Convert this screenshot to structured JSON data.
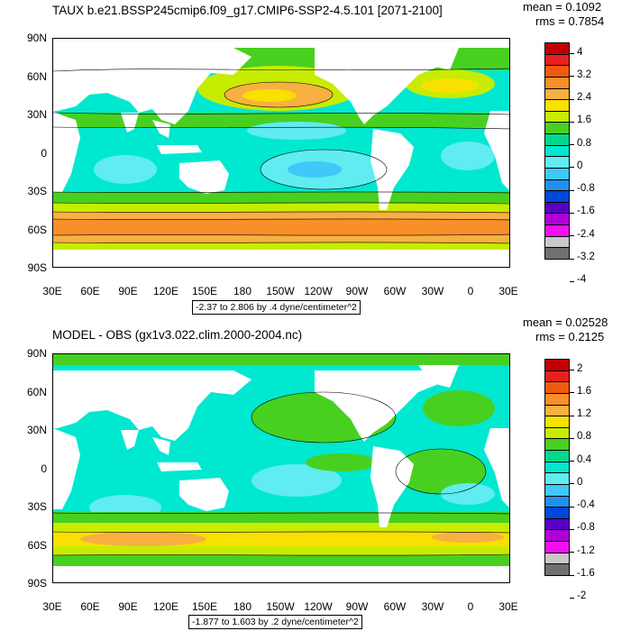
{
  "top": {
    "title": "TAUX b.e21.BSSP245cmip6.f09_g17.CMIP6-SSP2-4.5.101 [2071-2100]",
    "mean": "mean = 0.1092",
    "rms": "rms = 0.7854",
    "range": "-2.37 to 2.806 by .4 dyne/centimeter^2",
    "colorbar_labels": [
      "4",
      "3.2",
      "2.4",
      "1.6",
      "0.8",
      "0",
      "-0.8",
      "-1.6",
      "-2.4",
      "-3.2",
      "-4"
    ],
    "colors": [
      "#c00000",
      "#e82020",
      "#f05a10",
      "#f88f28",
      "#f8b040",
      "#f8e000",
      "#c8ec00",
      "#48d020",
      "#00d88c",
      "#00e8d0",
      "#60ecf0",
      "#40c8f8",
      "#2090f0",
      "#0048d8",
      "#5800c8",
      "#b000d8",
      "#f010f0",
      "#c8c8c8",
      "#707070"
    ]
  },
  "bottom": {
    "title": "MODEL - OBS (gx1v3.022.clim.2000-2004.nc)",
    "mean": "mean = 0.02528",
    "rms": "rms = 0.2125",
    "range": "-1.877 to 1.603 by .2 dyne/centimeter^2",
    "colorbar_labels": [
      "2",
      "1.6",
      "1.2",
      "0.8",
      "0.4",
      "0",
      "-0.4",
      "-0.8",
      "-1.2",
      "-1.6",
      "-2"
    ],
    "colors": [
      "#c00000",
      "#e82020",
      "#f05a10",
      "#f88f28",
      "#f8b040",
      "#f8e000",
      "#c8ec00",
      "#48d020",
      "#00d88c",
      "#00e8d0",
      "#60ecf0",
      "#40c8f8",
      "#2090f0",
      "#0048d8",
      "#5800c8",
      "#b000d8",
      "#f010f0",
      "#c8c8c8",
      "#707070"
    ]
  },
  "axes": {
    "lat_labels": [
      "90N",
      "60N",
      "30N",
      "0",
      "30S",
      "60S",
      "90S"
    ],
    "lon_labels": [
      "30E",
      "60E",
      "90E",
      "120E",
      "150E",
      "180",
      "150W",
      "120W",
      "90W",
      "60W",
      "30W",
      "0",
      "30E"
    ]
  }
}
